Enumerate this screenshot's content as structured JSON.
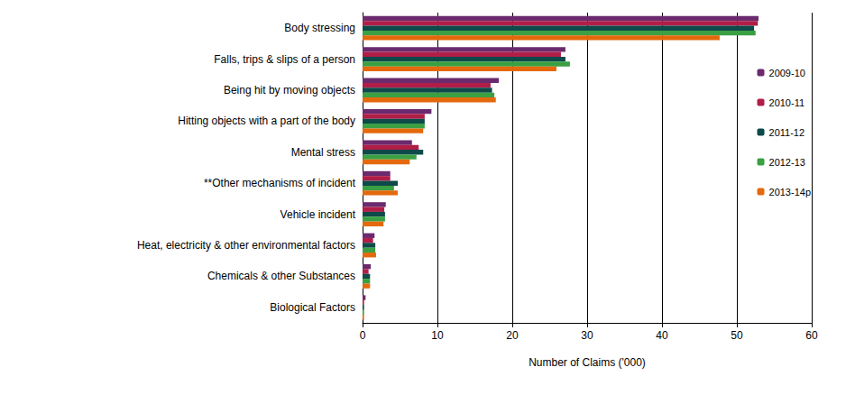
{
  "chart_data": {
    "type": "bar",
    "orientation": "horizontal",
    "x_label": "Number of Claims ('000)",
    "categories": [
      "Body stressing",
      "Falls, trips & slips of a person",
      "Being hit by moving objects",
      "Hitting objects with a part of the body",
      "Mental stress",
      "**Other mechanisms of incident",
      "Vehicle incident",
      "Heat, electricity & other environmental factors",
      "Chemicals & other Substances",
      "Biological Factors"
    ],
    "series": [
      {
        "name": "2009-10",
        "color": "#6b2a6e",
        "values": [
          52.9,
          27.1,
          18.2,
          9.2,
          6.6,
          3.7,
          3.1,
          1.6,
          1.1,
          0.4
        ]
      },
      {
        "name": "2010-11",
        "color": "#b01e48",
        "values": [
          52.8,
          26.5,
          17.1,
          8.3,
          7.5,
          3.7,
          2.9,
          1.4,
          0.8,
          0.2
        ]
      },
      {
        "name": "2011-12",
        "color": "#0e4a4a",
        "values": [
          52.3,
          27.1,
          17.3,
          8.3,
          8.1,
          4.7,
          3.0,
          1.7,
          1.0,
          0.2
        ]
      },
      {
        "name": "2012-13",
        "color": "#3aa043",
        "values": [
          52.5,
          27.7,
          17.6,
          8.3,
          7.2,
          4.2,
          3.0,
          1.7,
          1.0,
          0.2
        ]
      },
      {
        "name": "2013-14p",
        "color": "#e4690c",
        "values": [
          47.7,
          25.9,
          17.8,
          8.1,
          6.3,
          4.7,
          2.8,
          1.8,
          1.0,
          0.2
        ]
      }
    ],
    "xlim": [
      0,
      60
    ],
    "xticks": [
      0,
      10,
      20,
      30,
      40,
      50,
      60
    ],
    "grid": true,
    "legend": "right"
  }
}
